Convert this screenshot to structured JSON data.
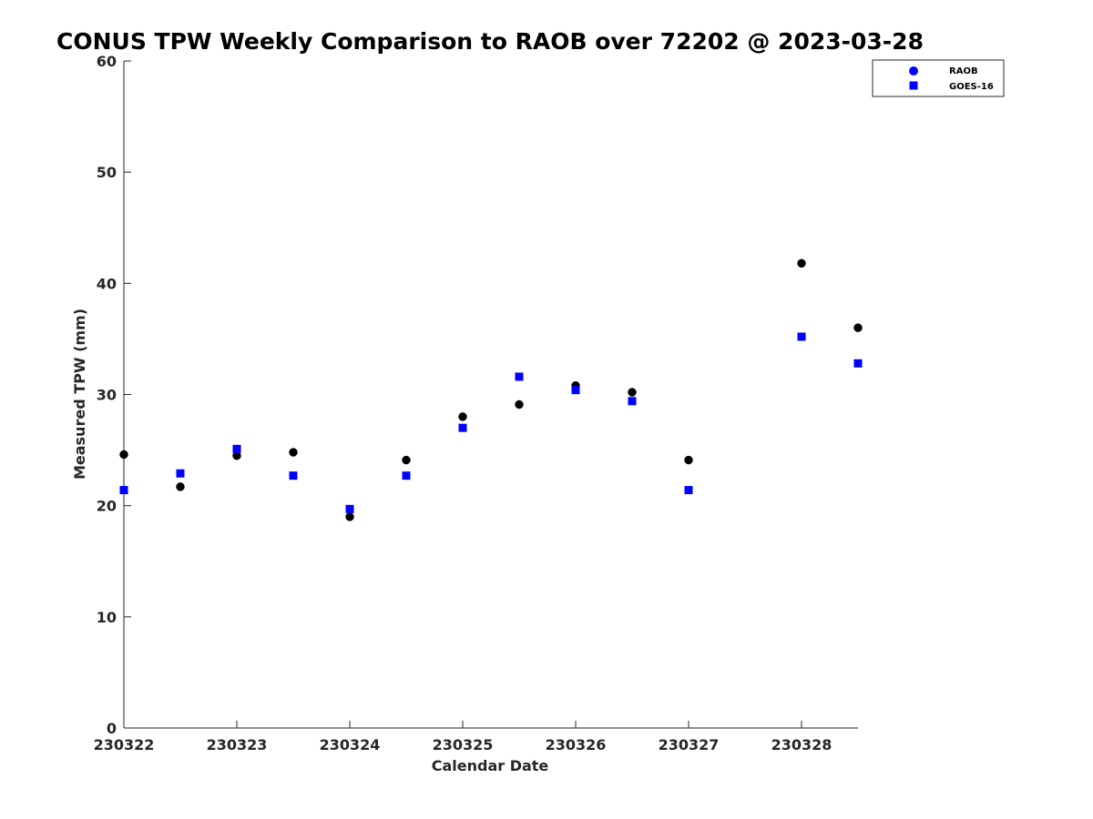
{
  "chart_data": {
    "type": "scatter",
    "title": "CONUS TPW Weekly Comparison to RAOB over 72202 @ 2023-03-28",
    "xlabel": "Calendar Date",
    "ylabel": "Measured TPW (mm)",
    "xlim": [
      "2023-03-22",
      "2023-03-28 12:00"
    ],
    "ylim": [
      0,
      60
    ],
    "x_ticks": [
      "230322",
      "230323",
      "230324",
      "230325",
      "230326",
      "230327",
      "230328"
    ],
    "y_ticks": [
      "0",
      "10",
      "20",
      "30",
      "40",
      "50",
      "60"
    ],
    "grid": false,
    "legend": {
      "placement": "top-right"
    },
    "x": [
      "2023-03-22 00:00",
      "2023-03-22 12:00",
      "2023-03-23 00:00",
      "2023-03-23 12:00",
      "2023-03-24 00:00",
      "2023-03-24 12:00",
      "2023-03-25 00:00",
      "2023-03-25 12:00",
      "2023-03-26 00:00",
      "2023-03-26 12:00",
      "2023-03-27 00:00",
      "2023-03-27 12:00",
      "2023-03-28 00:00",
      "2023-03-28 12:00"
    ],
    "series": [
      {
        "name": "RAOB",
        "marker": "circle",
        "color": "#000000",
        "values": [
          24.6,
          21.7,
          24.5,
          24.8,
          19.0,
          24.1,
          28.0,
          29.1,
          30.8,
          30.2,
          24.1,
          null,
          41.8,
          36.0
        ]
      },
      {
        "name": "GOES-16",
        "marker": "square",
        "color": "#0000ff",
        "values": [
          21.4,
          22.9,
          25.1,
          22.7,
          19.7,
          22.7,
          27.0,
          31.6,
          30.4,
          29.4,
          21.4,
          null,
          35.2,
          32.8
        ]
      }
    ]
  }
}
